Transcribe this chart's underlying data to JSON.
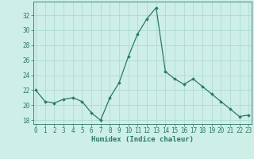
{
  "x": [
    0,
    1,
    2,
    3,
    4,
    5,
    6,
    7,
    8,
    9,
    10,
    11,
    12,
    13,
    14,
    15,
    16,
    17,
    18,
    19,
    20,
    21,
    22,
    23
  ],
  "y": [
    22.0,
    20.5,
    20.3,
    20.8,
    21.0,
    20.5,
    19.0,
    18.0,
    21.0,
    23.0,
    26.5,
    29.5,
    31.5,
    33.0,
    24.5,
    23.5,
    22.8,
    23.5,
    22.5,
    21.5,
    20.5,
    19.5,
    18.5,
    18.7
  ],
  "xlabel": "Humidex (Indice chaleur)",
  "ylim": [
    17.5,
    33.8
  ],
  "xlim": [
    -0.3,
    23.3
  ],
  "yticks": [
    18,
    20,
    22,
    24,
    26,
    28,
    30,
    32
  ],
  "xticks": [
    0,
    1,
    2,
    3,
    4,
    5,
    6,
    7,
    8,
    9,
    10,
    11,
    12,
    13,
    14,
    15,
    16,
    17,
    18,
    19,
    20,
    21,
    22,
    23
  ],
  "line_color": "#2a7a64",
  "marker_color": "#2a7a64",
  "bg_color": "#ceeee8",
  "grid_color": "#a8d8d0",
  "axis_color": "#2a7a64",
  "xlabel_fontsize": 6.5,
  "tick_fontsize": 5.5
}
